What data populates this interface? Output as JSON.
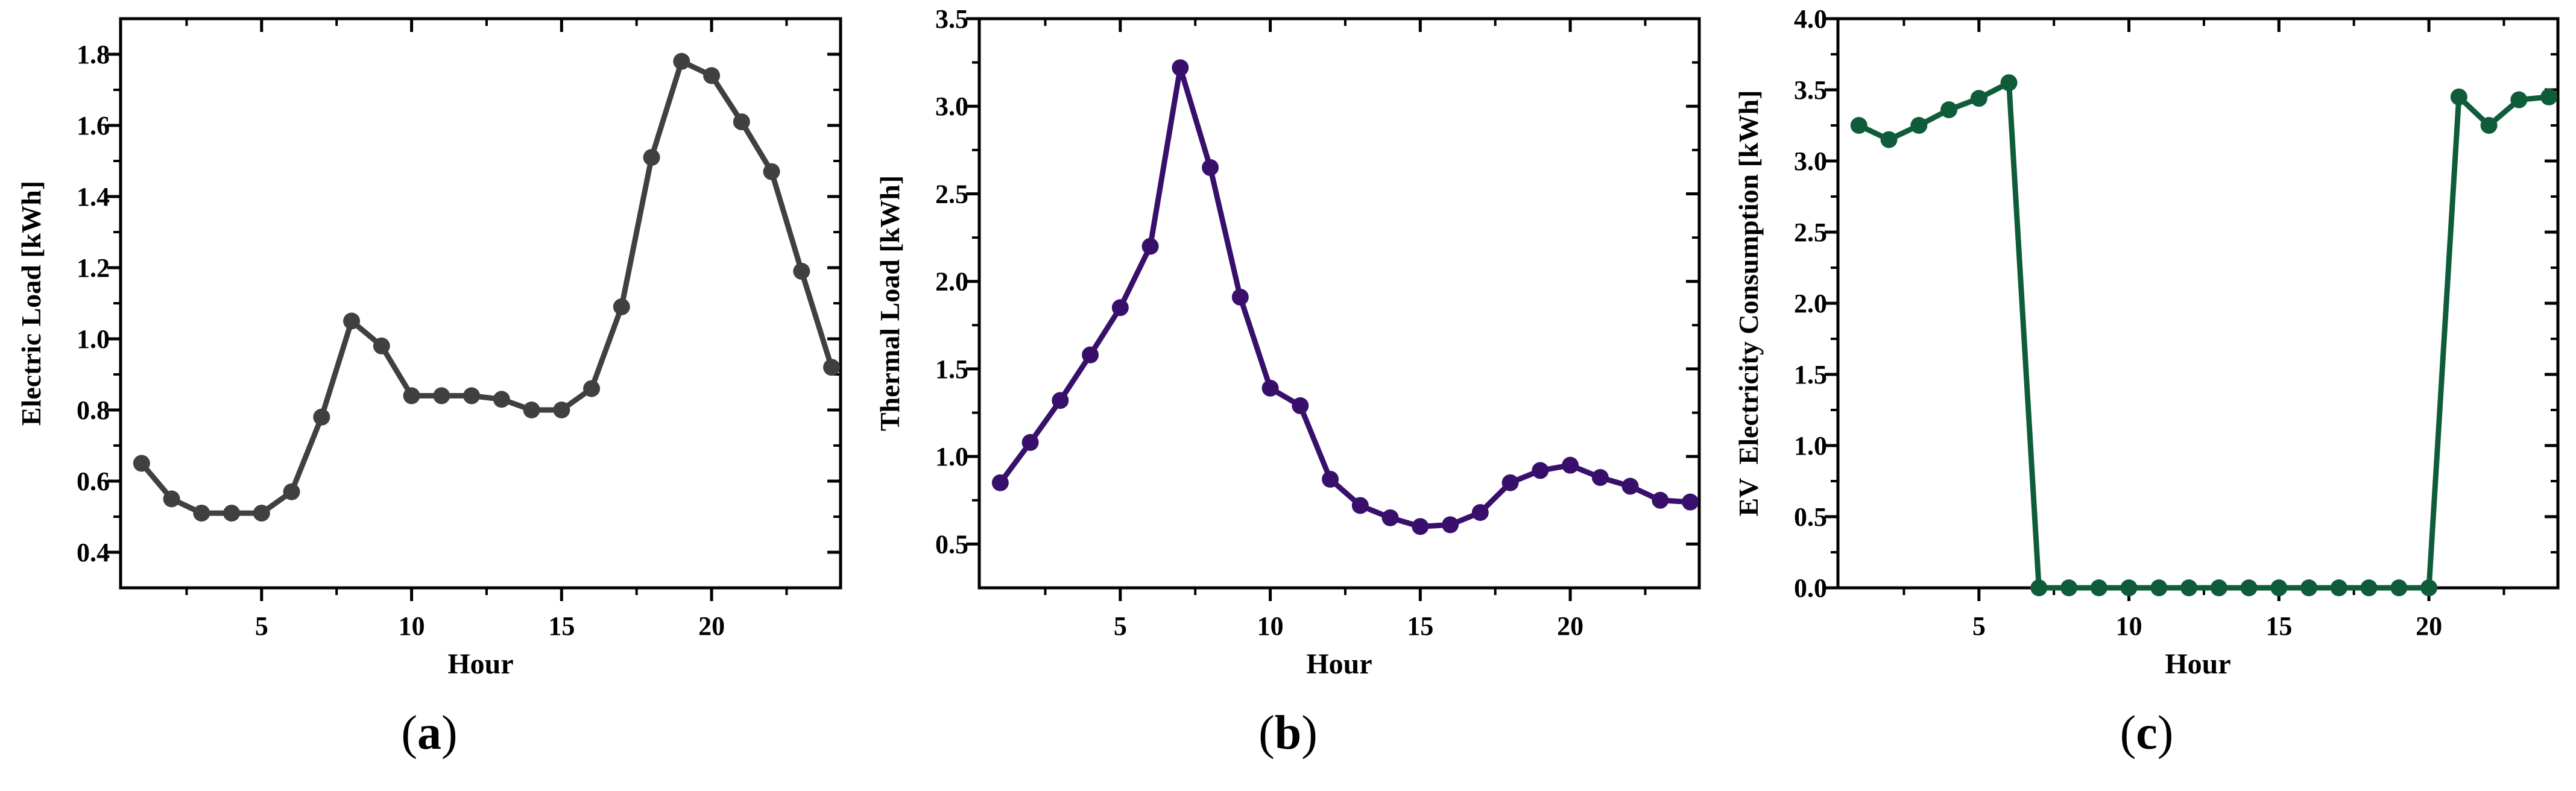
{
  "figure": {
    "background": "#ffffff",
    "axis_color": "#000000"
  },
  "chart_data": [
    {
      "type": "line",
      "panel_label": {
        "open": "(",
        "letter": "a",
        "close": ")"
      },
      "xlabel": "Hour",
      "ylabel": "Electric Load [kWh]",
      "line_color": "#404040",
      "marker": "circle",
      "grid": false,
      "legend": null,
      "x": [
        1,
        2,
        3,
        4,
        5,
        6,
        7,
        8,
        9,
        10,
        11,
        12,
        13,
        14,
        15,
        16,
        17,
        18,
        19,
        20,
        21,
        22,
        23,
        24
      ],
      "values": [
        0.65,
        0.55,
        0.51,
        0.51,
        0.51,
        0.57,
        0.78,
        1.05,
        0.98,
        0.84,
        0.84,
        0.84,
        0.83,
        0.8,
        0.8,
        0.86,
        1.09,
        1.51,
        1.78,
        1.74,
        1.61,
        1.47,
        1.19,
        0.92
      ],
      "xlim": [
        0.3,
        24.3
      ],
      "ylim": [
        0.3,
        1.9
      ],
      "x_major_ticks": [
        {
          "v": 5,
          "label": "5"
        },
        {
          "v": 10,
          "label": "10"
        },
        {
          "v": 15,
          "label": "15"
        },
        {
          "v": 20,
          "label": "20"
        }
      ],
      "x_minor_ticks": [
        2.5,
        7.5,
        12.5,
        17.5,
        22.5
      ],
      "y_major_ticks": [
        {
          "v": 0.4,
          "label": "0.4"
        },
        {
          "v": 0.6,
          "label": "0.6"
        },
        {
          "v": 0.8,
          "label": "0.8"
        },
        {
          "v": 1.0,
          "label": "1.0"
        },
        {
          "v": 1.2,
          "label": "1.2"
        },
        {
          "v": 1.4,
          "label": "1.4"
        },
        {
          "v": 1.6,
          "label": "1.6"
        },
        {
          "v": 1.8,
          "label": "1.8"
        }
      ],
      "y_minor_ticks": [
        0.5,
        0.7,
        0.9,
        1.1,
        1.3,
        1.5,
        1.7
      ]
    },
    {
      "type": "line",
      "panel_label": {
        "open": "(",
        "letter": "b",
        "close": ")"
      },
      "xlabel": "Hour",
      "ylabel": "Thermal Load [kWh]",
      "line_color": "#38106b",
      "marker": "circle",
      "grid": false,
      "legend": null,
      "x": [
        1,
        2,
        3,
        4,
        5,
        6,
        7,
        8,
        9,
        10,
        11,
        12,
        13,
        14,
        15,
        16,
        17,
        18,
        19,
        20,
        21,
        22,
        23,
        24
      ],
      "values": [
        0.85,
        1.08,
        1.32,
        1.58,
        1.85,
        2.2,
        3.22,
        2.65,
        1.91,
        1.39,
        1.29,
        0.87,
        0.72,
        0.65,
        0.6,
        0.61,
        0.68,
        0.85,
        0.92,
        0.95,
        0.88,
        0.83,
        0.75,
        0.74
      ],
      "xlim": [
        0.3,
        24.3
      ],
      "ylim": [
        0.25,
        3.5
      ],
      "x_major_ticks": [
        {
          "v": 5,
          "label": "5"
        },
        {
          "v": 10,
          "label": "10"
        },
        {
          "v": 15,
          "label": "15"
        },
        {
          "v": 20,
          "label": "20"
        }
      ],
      "x_minor_ticks": [
        2.5,
        7.5,
        12.5,
        17.5,
        22.5
      ],
      "y_major_ticks": [
        {
          "v": 0.5,
          "label": "0.5"
        },
        {
          "v": 1.0,
          "label": "1.0"
        },
        {
          "v": 1.5,
          "label": "1.5"
        },
        {
          "v": 2.0,
          "label": "2.0"
        },
        {
          "v": 2.5,
          "label": "2.5"
        },
        {
          "v": 3.0,
          "label": "3.0"
        },
        {
          "v": 3.5,
          "label": "3.5"
        }
      ],
      "y_minor_ticks": [
        0.75,
        1.25,
        1.75,
        2.25,
        2.75,
        3.25
      ]
    },
    {
      "type": "line",
      "panel_label": {
        "open": "(",
        "letter": "c",
        "close": ")"
      },
      "xlabel": "Hour",
      "ylabel": "EV  Electricity Consumption [kWh]",
      "line_color": "#0e5c3a",
      "marker": "circle",
      "grid": false,
      "legend": null,
      "x": [
        1,
        2,
        3,
        4,
        5,
        6,
        7,
        8,
        9,
        10,
        11,
        12,
        13,
        14,
        15,
        16,
        17,
        18,
        19,
        20,
        21,
        22,
        23,
        24
      ],
      "values": [
        3.25,
        3.15,
        3.25,
        3.36,
        3.44,
        3.55,
        0.0,
        0.0,
        0.0,
        0.0,
        0.0,
        0.0,
        0.0,
        0.0,
        0.0,
        0.0,
        0.0,
        0.0,
        0.0,
        0.0,
        3.45,
        3.25,
        3.43,
        3.45
      ],
      "xlim": [
        0.3,
        24.3
      ],
      "ylim": [
        0.0,
        4.0
      ],
      "x_major_ticks": [
        {
          "v": 5,
          "label": "5"
        },
        {
          "v": 10,
          "label": "10"
        },
        {
          "v": 15,
          "label": "15"
        },
        {
          "v": 20,
          "label": "20"
        }
      ],
      "x_minor_ticks": [
        2.5,
        7.5,
        12.5,
        17.5,
        22.5
      ],
      "y_major_ticks": [
        {
          "v": 0.0,
          "label": "0.0"
        },
        {
          "v": 0.5,
          "label": "0.5"
        },
        {
          "v": 1.0,
          "label": "1.0"
        },
        {
          "v": 1.5,
          "label": "1.5"
        },
        {
          "v": 2.0,
          "label": "2.0"
        },
        {
          "v": 2.5,
          "label": "2.5"
        },
        {
          "v": 3.0,
          "label": "3.0"
        },
        {
          "v": 3.5,
          "label": "3.5"
        },
        {
          "v": 4.0,
          "label": "4.0"
        }
      ],
      "y_minor_ticks": [
        0.25,
        0.75,
        1.25,
        1.75,
        2.25,
        2.75,
        3.25,
        3.75
      ]
    }
  ]
}
